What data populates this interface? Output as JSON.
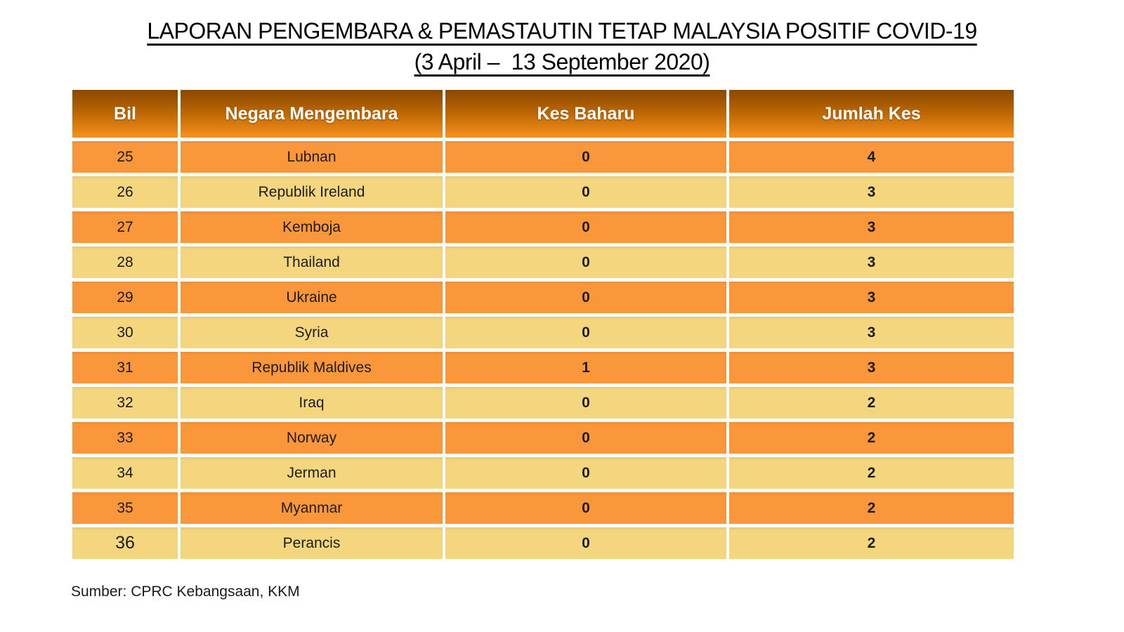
{
  "page": {
    "title_line1": "LAPORAN PENGEMBARA & PEMASTAUTIN TETAP MALAYSIA POSITIF COVID-19",
    "title_line2": "(3 April –  13 September 2020)",
    "source": "Sumber: CPRC Kebangsaan, KKM"
  },
  "table": {
    "columns": [
      "Bil",
      "Negara Mengembara",
      "Kes Baharu",
      "Jumlah Kes"
    ],
    "rows": [
      {
        "bil": "25",
        "negara": "Lubnan",
        "kes_baharu": "0",
        "jumlah_kes": "4"
      },
      {
        "bil": "26",
        "negara": "Republik Ireland",
        "kes_baharu": "0",
        "jumlah_kes": "3"
      },
      {
        "bil": "27",
        "negara": "Kemboja",
        "kes_baharu": "0",
        "jumlah_kes": "3"
      },
      {
        "bil": "28",
        "negara": "Thailand",
        "kes_baharu": "0",
        "jumlah_kes": "3"
      },
      {
        "bil": "29",
        "negara": "Ukraine",
        "kes_baharu": "0",
        "jumlah_kes": "3"
      },
      {
        "bil": "30",
        "negara": "Syria",
        "kes_baharu": "0",
        "jumlah_kes": "3"
      },
      {
        "bil": "31",
        "negara": "Republik Maldives",
        "kes_baharu": "1",
        "jumlah_kes": "3"
      },
      {
        "bil": "32",
        "negara": "Iraq",
        "kes_baharu": "0",
        "jumlah_kes": "2"
      },
      {
        "bil": "33",
        "negara": "Norway",
        "kes_baharu": "0",
        "jumlah_kes": "2"
      },
      {
        "bil": "34",
        "negara": "Jerman",
        "kes_baharu": "0",
        "jumlah_kes": "2"
      },
      {
        "bil": "35",
        "negara": "Myanmar",
        "kes_baharu": "0",
        "jumlah_kes": "2"
      },
      {
        "bil": "36",
        "negara": "Perancis",
        "kes_baharu": "0",
        "jumlah_kes": "2"
      }
    ]
  },
  "colors": {
    "header_gradient_top": "#8a4700",
    "header_gradient_mid": "#c06a04",
    "header_gradient_bottom": "#f7921e",
    "row_orange": "#f9973a",
    "row_tan": "#f4d67f",
    "header_text": "#ffffff",
    "body_text": "#1c1c1c",
    "gap_white": "#ffffff"
  }
}
